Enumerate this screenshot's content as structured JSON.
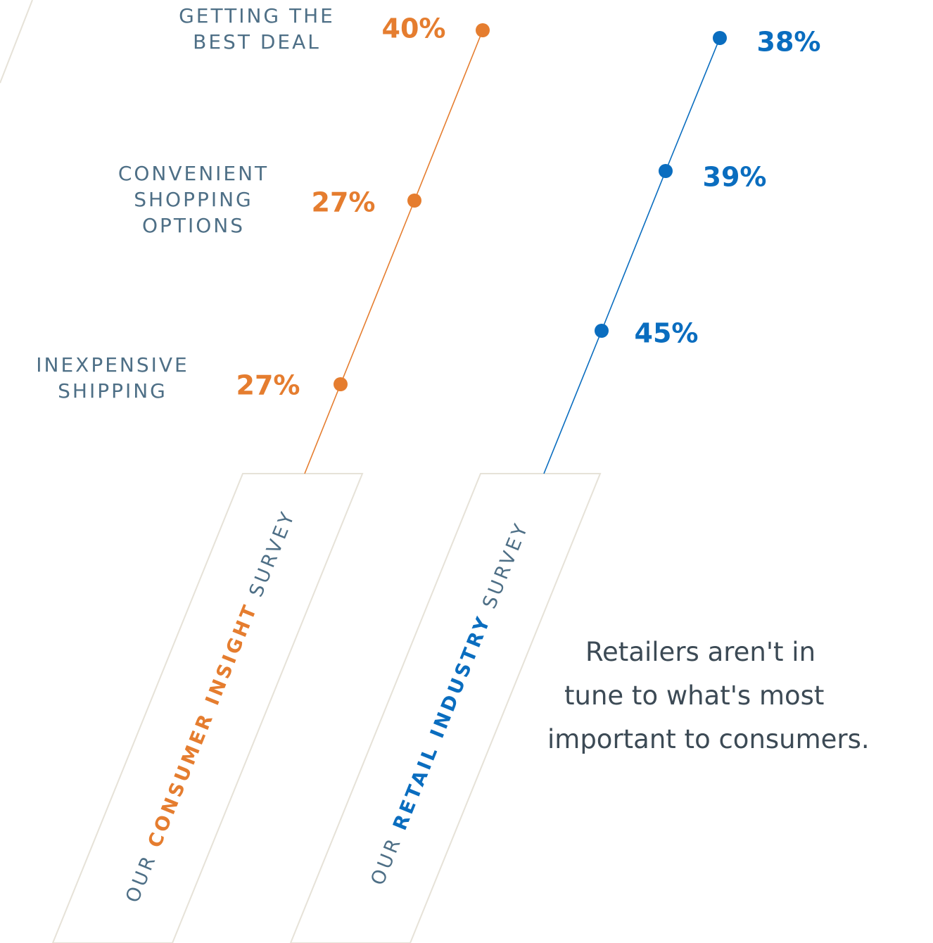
{
  "colors": {
    "consumer": "#e57d2f",
    "retail": "#0a6dbf",
    "label": "#4e6f86",
    "panel_stroke": "#e6e2d8",
    "tagline": "#3c4a55"
  },
  "chart_data": {
    "type": "line",
    "categories": [
      "GETTING THE BEST DEAL",
      "CONVENIENT SHOPPING OPTIONS",
      "INEXPENSIVE SHIPPING"
    ],
    "series": [
      {
        "name": "OUR CONSUMER INSIGHT SURVEY",
        "values": [
          40,
          27,
          27
        ],
        "labels": [
          "40%",
          "27%",
          "27%"
        ]
      },
      {
        "name": "OUR RETAIL INDUSTRY SURVEY",
        "values": [
          38,
          39,
          45
        ],
        "labels": [
          "38%",
          "39%",
          "45%"
        ]
      }
    ]
  },
  "category_lines": [
    [
      "GETTING THE",
      "BEST DEAL"
    ],
    [
      "CONVENIENT",
      "SHOPPING",
      "OPTIONS"
    ],
    [
      "INEXPENSIVE",
      "SHIPPING"
    ]
  ],
  "panels": [
    {
      "prefix": "OUR ",
      "highlight": "CONSUMER INSIGHT",
      "suffix": " SURVEY"
    },
    {
      "prefix": "OUR ",
      "highlight": "RETAIL INDUSTRY",
      "suffix": " SURVEY"
    }
  ],
  "tagline": [
    "Retailers aren't in",
    "tune to what's most",
    "important to consumers."
  ]
}
